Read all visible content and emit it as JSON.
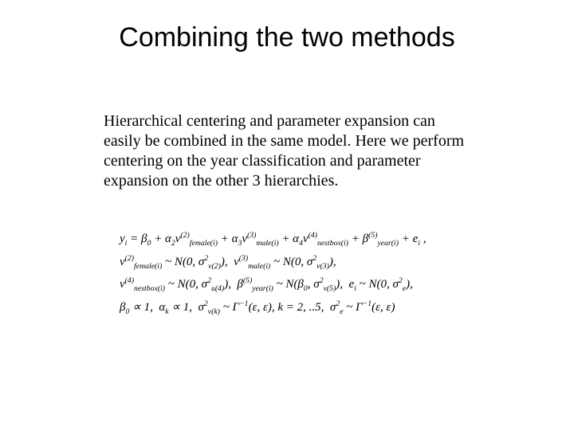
{
  "title": "Combining the two methods",
  "body": "Hierarchical centering and parameter expansion can easily be combined in the same model. Here we perform centering on the year classification and parameter expansion on the other 3 hierarchies.",
  "equations": {
    "lines_html": [
      "y<sub>i</sub> = &beta;<sub>0</sub> + &alpha;<sub>2</sub>&nu;<sup>(2)</sup><sub>female(i)</sub> + &alpha;<sub>3</sub>&nu;<sup>(3)</sup><sub>male(i)</sub> + &alpha;<sub>4</sub>&nu;<sup>(4)</sup><sub>nestbox(i)</sub> + &beta;<sup>(5)</sup><sub>year(i)</sub> + e<sub>i</sub> ,",
      "&nu;<sup>(2)</sup><sub>female(i)</sub> ~ N(0, &sigma;<sup>2</sup><sub>&nu;(2)</sub>), &nbsp;&nu;<sup>(3)</sup><sub>male(i)</sub> ~ N(0, &sigma;<sup>2</sup><sub>&nu;(3)</sub>),",
      "&nu;<sup>(4)</sup><sub>nestbox(i)</sub> ~ N(0, &sigma;<sup>2</sup><sub>u(4)</sub>), &nbsp;&beta;<sup>(5)</sup><sub>year(i)</sub> ~ N(&beta;<sub>0</sub>, &sigma;<sup>2</sup><sub>&nu;(5)</sub>), &nbsp;e<sub>i</sub> ~ N(0, &sigma;<sup>2</sup><sub>e</sub>),",
      "&beta;<sub>0</sub> &prop; 1, &nbsp;&alpha;<sub>k</sub> &prop; 1, &nbsp;&sigma;<sup>2</sup><sub>&nu;(k)</sub> ~ &Gamma;<sup>&minus;1</sup>(&epsilon;, &epsilon;), k = 2, ..5, &nbsp;&sigma;<sup>2</sup><sub>e</sub> ~ &Gamma;<sup>&minus;1</sup>(&epsilon;, &epsilon;)"
    ]
  },
  "style": {
    "background": "#ffffff",
    "text_color": "#000000",
    "title_fontsize": 34,
    "body_fontsize": 20,
    "eq_fontsize": 15,
    "body_font": "Times New Roman",
    "title_font": "Arial"
  }
}
